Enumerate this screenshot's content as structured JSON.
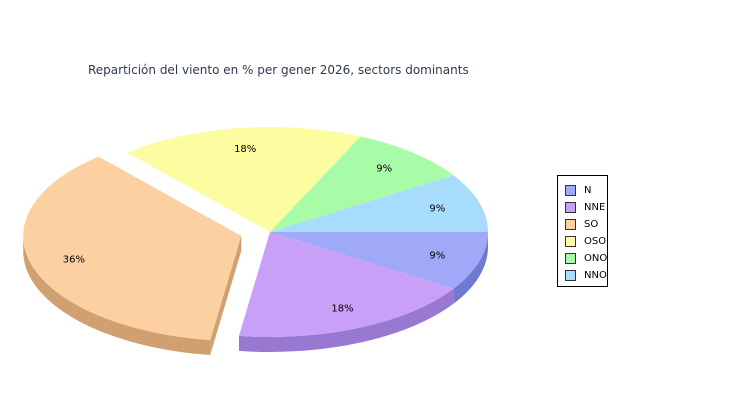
{
  "chart_data": {
    "type": "pie",
    "title": "Repartición del viento en % per gener 2026, sectors dominants",
    "categories": [
      "N",
      "NNE",
      "SO",
      "OSO",
      "ONO",
      "NNO"
    ],
    "values": [
      9,
      18,
      36,
      18,
      9,
      9
    ],
    "labels": [
      "9%",
      "18%",
      "36%",
      "18%",
      "9%",
      "9%"
    ],
    "colors": [
      "#a0a8f8",
      "#c8a0f8",
      "#fcd0a0",
      "#fcfca0",
      "#a8fca8",
      "#a8dcfc"
    ],
    "side_colors": [
      "#7078d0",
      "#9878d0",
      "#d0a070",
      "#d0d070",
      "#70d070",
      "#70b0d0"
    ],
    "exploded": [
      "SO"
    ],
    "legend_position": "right",
    "three_d": true
  }
}
